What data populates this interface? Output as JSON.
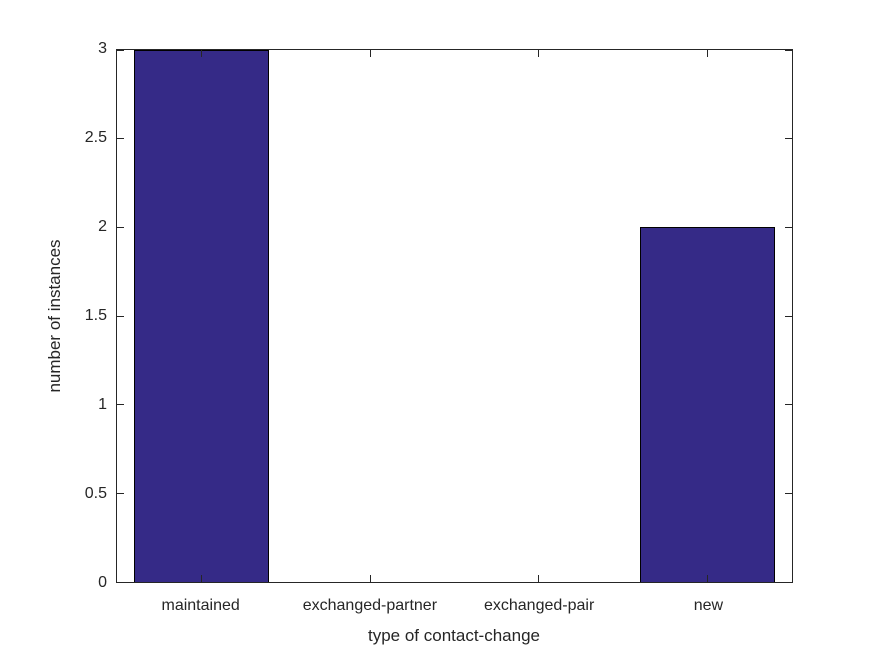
{
  "chart_data": {
    "type": "bar",
    "categories": [
      "maintained",
      "exchanged-partner",
      "exchanged-pair",
      "new"
    ],
    "values": [
      3,
      0,
      0,
      2
    ],
    "title": "",
    "xlabel": "type of contact-change",
    "ylabel": "number of instances",
    "ylim": [
      0,
      3
    ],
    "yticks": [
      0,
      0.5,
      1,
      1.5,
      2,
      2.5,
      3
    ],
    "ytick_labels": [
      "0",
      "0.5",
      "1",
      "1.5",
      "2",
      "2.5",
      "3"
    ],
    "bar_width_fraction": 0.8,
    "grid": false,
    "legend": null,
    "colors": {
      "bar_fill": "#352a87",
      "bar_edge": "#000000",
      "axis": "#262626",
      "text": "#262626",
      "background": "#ffffff"
    }
  }
}
